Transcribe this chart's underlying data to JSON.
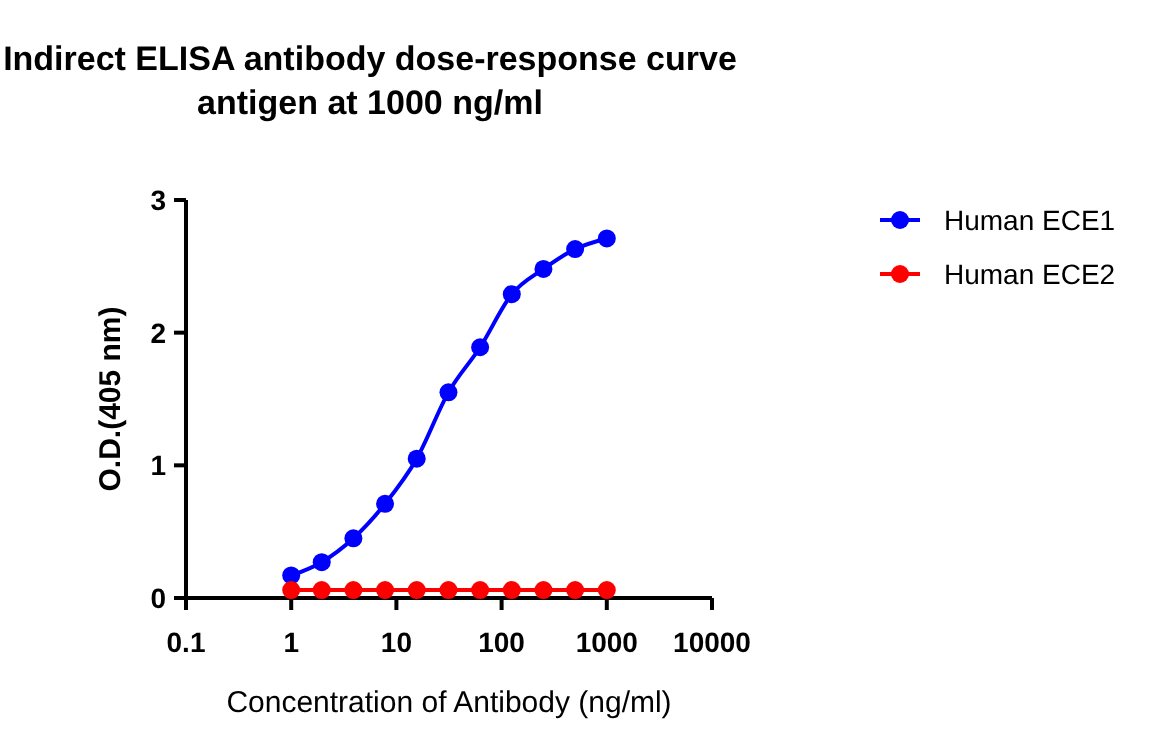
{
  "chart_data": {
    "type": "line",
    "title": "Indirect ELISA antibody dose-response curve\nantigen at 1000 ng/ml",
    "xlabel": "Concentration of Antibody (ng/ml)",
    "ylabel": "O.D.(405 nm)",
    "log": "x",
    "xlim": [
      0.1,
      10000
    ],
    "xticks": [
      0.1,
      1,
      10,
      100,
      1000,
      10000
    ],
    "ylim": [
      0,
      3
    ],
    "yticks": [
      0,
      1,
      2,
      3
    ],
    "grid": false,
    "legend": "right",
    "marker": "circle",
    "line_style": "solid",
    "x": [
      1,
      1.95,
      3.9,
      7.8,
      15.6,
      31.25,
      62.5,
      125,
      250,
      500,
      1000
    ],
    "series": [
      {
        "name": "Human ECE1",
        "color": "#0000ff",
        "values": [
          0.17,
          0.27,
          0.45,
          0.71,
          1.05,
          1.55,
          1.89,
          2.29,
          2.48,
          2.63,
          2.71
        ]
      },
      {
        "name": "Human ECE2",
        "color": "#ff0000",
        "values": [
          0.06,
          0.06,
          0.06,
          0.06,
          0.06,
          0.06,
          0.06,
          0.06,
          0.06,
          0.06,
          0.06
        ]
      }
    ]
  }
}
